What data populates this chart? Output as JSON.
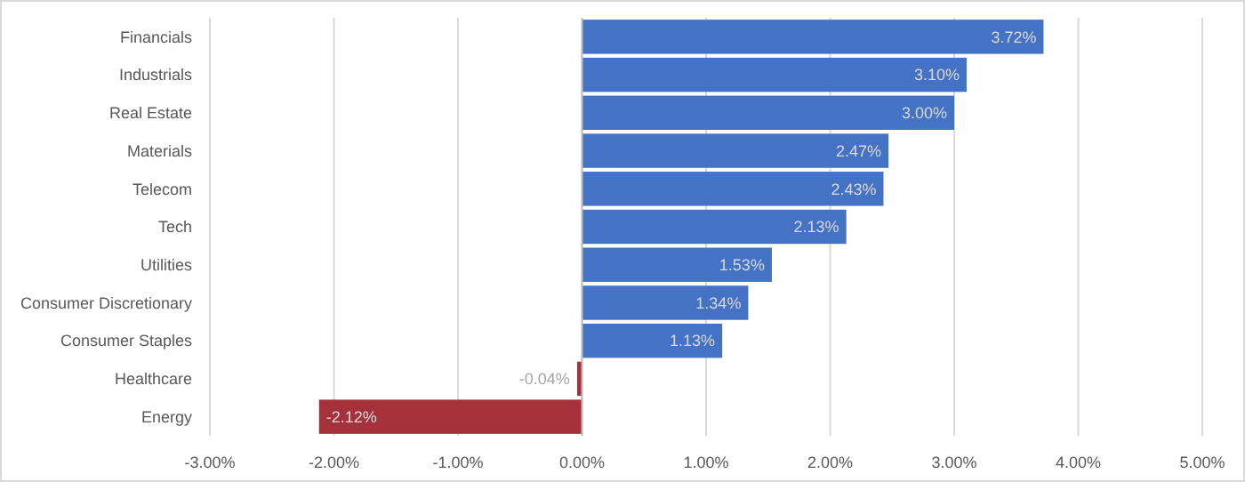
{
  "chart_data": {
    "type": "bar",
    "orientation": "horizontal",
    "categories": [
      "Financials",
      "Industrials",
      "Real Estate",
      "Materials",
      "Telecom",
      "Tech",
      "Utilities",
      "Consumer Discretionary",
      "Consumer Staples",
      "Healthcare",
      "Energy"
    ],
    "values": [
      3.72,
      3.1,
      3.0,
      2.47,
      2.43,
      2.13,
      1.53,
      1.34,
      1.13,
      -0.04,
      -2.12
    ],
    "colors": [
      "#4472c4",
      "#4472c4",
      "#4472c4",
      "#4472c4",
      "#4472c4",
      "#4472c4",
      "#4472c4",
      "#4472c4",
      "#4472c4",
      "#a5313b",
      "#a5313b"
    ],
    "value_labels": [
      "3.72%",
      "3.10%",
      "3.00%",
      "2.47%",
      "2.43%",
      "2.13%",
      "1.53%",
      "1.34%",
      "1.13%",
      "-0.04%",
      "-2.12%"
    ],
    "xlim": [
      -3,
      5
    ],
    "xticks": [
      {
        "value": -3,
        "label": "-3.00%"
      },
      {
        "value": -2,
        "label": "-2.00%"
      },
      {
        "value": -1,
        "label": "-1.00%"
      },
      {
        "value": 0,
        "label": "0.00%"
      },
      {
        "value": 1,
        "label": "1.00%"
      },
      {
        "value": 2,
        "label": "2.00%"
      },
      {
        "value": 3,
        "label": "3.00%"
      },
      {
        "value": 4,
        "label": "4.00%"
      },
      {
        "value": 5,
        "label": "5.00%"
      }
    ],
    "grid": "x"
  }
}
